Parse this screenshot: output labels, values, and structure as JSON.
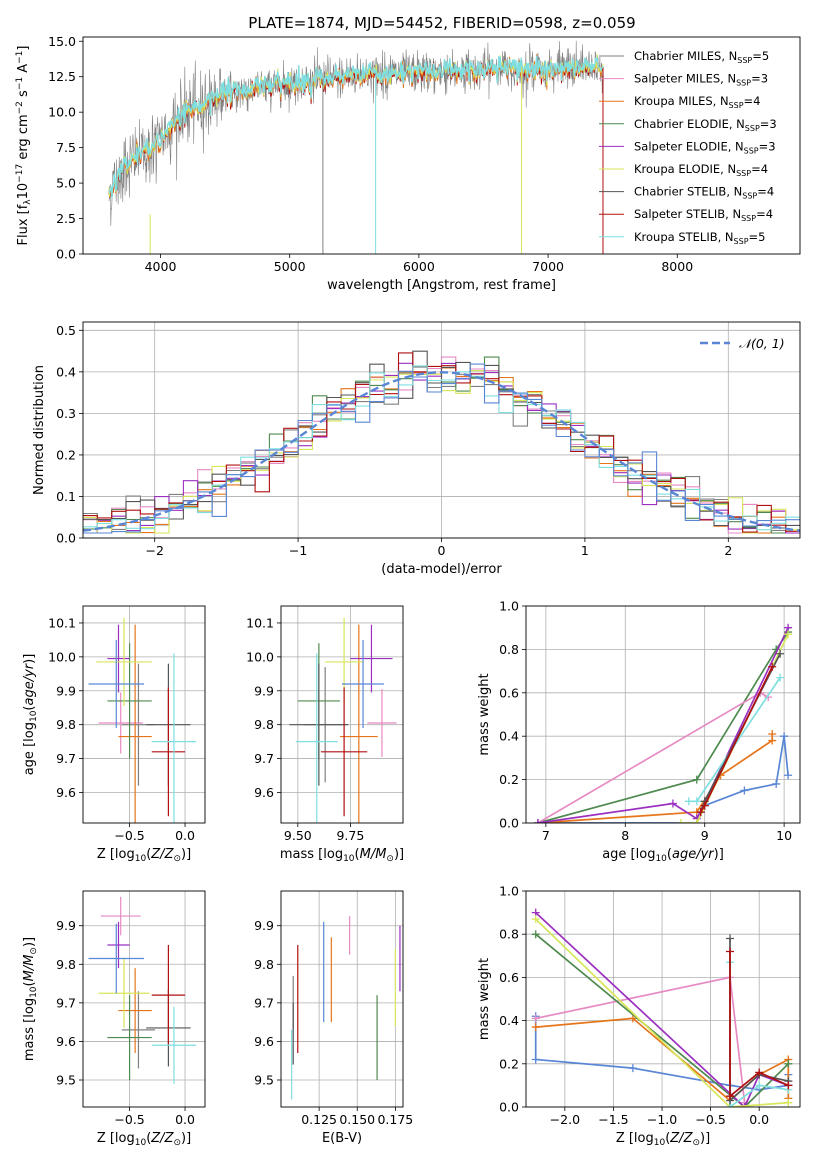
{
  "title": "PLATE=1874, MJD=54452, FIBERID=0598, z=0.059",
  "colors": {
    "chabrier_miles": "#808080",
    "salpeter_miles": "#e78ac3",
    "kroupa_miles": "#e6751a",
    "chabrier_elodie": "#4e8a4e",
    "salpeter_elodie": "#9b30c0",
    "kroupa_elodie": "#d8e65a",
    "chabrier_stelib": "#555555",
    "salpeter_stelib": "#b01010",
    "kroupa_stelib": "#7fdfe0",
    "blue": "#5a86d6",
    "grid": "#b0b0b0"
  },
  "chart_data": [
    {
      "id": "spectrum",
      "type": "line",
      "xlabel": "wavelength [Angstrom, rest frame]",
      "ylabel": "Flux [f_λ10^-17 erg cm^-2 s^-1 A^-1]",
      "xlim": [
        3400,
        8950
      ],
      "ylim": [
        0,
        15.3
      ],
      "xticks": [
        "4000",
        "5000",
        "6000",
        "7000",
        "8000"
      ],
      "yticks": [
        "0.0",
        "2.5",
        "5.0",
        "7.5",
        "10.0",
        "12.5",
        "15.0"
      ],
      "legend_position": "right",
      "legend": [
        {
          "base": "Chabrier MILES, N",
          "sub": "SSP",
          "tail": "=5",
          "color_key": "chabrier_miles"
        },
        {
          "base": "Salpeter MILES, N",
          "sub": "SSP",
          "tail": "=3",
          "color_key": "salpeter_miles"
        },
        {
          "base": "Kroupa MILES, N",
          "sub": "SSP",
          "tail": "=4",
          "color_key": "kroupa_miles"
        },
        {
          "base": "Chabrier ELODIE, N",
          "sub": "SSP",
          "tail": "=3",
          "color_key": "chabrier_elodie"
        },
        {
          "base": "Salpeter ELODIE, N",
          "sub": "SSP",
          "tail": "=3",
          "color_key": "salpeter_elodie"
        },
        {
          "base": "Kroupa ELODIE, N",
          "sub": "SSP",
          "tail": "=4",
          "color_key": "kroupa_elodie"
        },
        {
          "base": "Chabrier STELIB, N",
          "sub": "SSP",
          "tail": "=4",
          "color_key": "chabrier_stelib"
        },
        {
          "base": "Salpeter STELIB, N",
          "sub": "SSP",
          "tail": "=4",
          "color_key": "salpeter_stelib"
        },
        {
          "base": "Kroupa STELIB, N",
          "sub": "SSP",
          "tail": "=5",
          "color_key": "kroupa_stelib"
        }
      ],
      "continuum_x": [
        3600,
        3700,
        3800,
        3900,
        4000,
        4100,
        4200,
        4300,
        4400,
        4600,
        4800,
        5000,
        5200,
        5400,
        5600,
        5800,
        6000,
        6200,
        6400,
        6600,
        6800,
        7000,
        7200,
        7400
      ],
      "continuum_y": [
        4.2,
        6.0,
        6.8,
        7.2,
        8.0,
        9.2,
        10.0,
        10.4,
        11.0,
        11.4,
        11.8,
        12.0,
        12.3,
        12.5,
        12.7,
        12.7,
        12.8,
        12.8,
        12.9,
        13.1,
        13.0,
        13.0,
        13.1,
        13.1
      ],
      "spectrum_range": [
        3600,
        7430
      ],
      "data_spikes": [
        {
          "x": 5257,
          "y": 0
        },
        {
          "x": 5665,
          "y": 0
        },
        {
          "x": 6795,
          "y": 0
        },
        {
          "x": 7425,
          "y": 0
        }
      ]
    },
    {
      "id": "residuals",
      "type": "step",
      "xlabel": "(data-model)/error",
      "ylabel": "Normed distribution",
      "xlim": [
        -2.5,
        2.5
      ],
      "ylim": [
        0,
        0.52
      ],
      "xticks": [
        "−2",
        "−1",
        "0",
        "1",
        "2"
      ],
      "yticks": [
        "0.0",
        "0.1",
        "0.2",
        "0.3",
        "0.4",
        "0.5"
      ],
      "legend": [
        {
          "label": "𝒩(0, 1)",
          "color_key": "blue",
          "style": "dashed"
        }
      ],
      "bin_width": 0.1,
      "gaussian": {
        "mean": 0,
        "sigma": 1
      }
    },
    {
      "id": "age_vs_Z",
      "type": "errorbar",
      "xlabel": "Z [log10(Z/Z⊙)]",
      "ylabel": "age [log10(age/yr)]",
      "xlim": [
        -0.92,
        0.18
      ],
      "ylim": [
        9.51,
        10.15
      ],
      "xticks": [
        "−0.5",
        "0.0"
      ],
      "yticks": [
        "9.6",
        "9.7",
        "9.8",
        "9.9",
        "10.0",
        "10.1"
      ],
      "points": [
        {
          "x": -0.42,
          "xerr": 0.15,
          "y": 9.8,
          "yerr": 0.18,
          "color_key": "chabrier_miles"
        },
        {
          "x": -0.58,
          "xerr": 0.2,
          "y": 9.805,
          "yerr": 0.09,
          "color_key": "salpeter_miles"
        },
        {
          "x": -0.45,
          "xerr": 0.15,
          "y": 9.765,
          "yerr": 0.33,
          "color_key": "kroupa_miles"
        },
        {
          "x": -0.5,
          "xerr": 0.2,
          "y": 9.87,
          "yerr": 0.17,
          "color_key": "chabrier_elodie"
        },
        {
          "x": -0.6,
          "xerr": 0.1,
          "y": 9.995,
          "yerr": 0.1,
          "color_key": "salpeter_elodie"
        },
        {
          "x": -0.55,
          "xerr": 0.25,
          "y": 9.985,
          "yerr": 0.13,
          "color_key": "kroupa_elodie"
        },
        {
          "x": -0.15,
          "xerr": 0.2,
          "y": 9.8,
          "yerr": 0.18,
          "color_key": "chabrier_stelib"
        },
        {
          "x": -0.15,
          "xerr": 0.15,
          "y": 9.72,
          "yerr": 0.19,
          "color_key": "salpeter_stelib"
        },
        {
          "x": -0.1,
          "xerr": 0.2,
          "y": 9.75,
          "yerr": 0.26,
          "color_key": "kroupa_stelib"
        },
        {
          "x": -0.62,
          "xerr": 0.25,
          "y": 9.92,
          "yerr": 0.13,
          "color_key": "blue"
        }
      ]
    },
    {
      "id": "age_vs_mass",
      "type": "errorbar",
      "xlabel": "mass [log10(M/M⊙)]",
      "ylabel": "",
      "xlim": [
        9.42,
        10.0
      ],
      "ylim": [
        9.51,
        10.15
      ],
      "xticks": [
        "9.50",
        "9.75"
      ],
      "yticks": [
        "9.6",
        "9.7",
        "9.8",
        "9.9",
        "10.0",
        "10.1"
      ],
      "points": [
        {
          "x": 9.63,
          "xerr": 0.1,
          "y": 9.8,
          "yerr": 0.17,
          "color_key": "chabrier_miles"
        },
        {
          "x": 9.9,
          "xerr": 0.07,
          "y": 9.805,
          "yerr": 0.1,
          "color_key": "salpeter_miles"
        },
        {
          "x": 9.79,
          "xerr": 0.09,
          "y": 9.765,
          "yerr": 0.33,
          "color_key": "kroupa_miles"
        },
        {
          "x": 9.6,
          "xerr": 0.1,
          "y": 9.87,
          "yerr": 0.17,
          "color_key": "chabrier_elodie"
        },
        {
          "x": 9.85,
          "xerr": 0.1,
          "y": 9.995,
          "yerr": 0.1,
          "color_key": "salpeter_elodie"
        },
        {
          "x": 9.72,
          "xerr": 0.09,
          "y": 9.985,
          "yerr": 0.13,
          "color_key": "kroupa_elodie"
        },
        {
          "x": 9.6,
          "xerr": 0.14,
          "y": 9.8,
          "yerr": 0.18,
          "color_key": "chabrier_stelib"
        },
        {
          "x": 9.72,
          "xerr": 0.11,
          "y": 9.72,
          "yerr": 0.19,
          "color_key": "salpeter_stelib"
        },
        {
          "x": 9.59,
          "xerr": 0.1,
          "y": 9.75,
          "yerr": 0.26,
          "color_key": "kroupa_stelib"
        },
        {
          "x": 9.81,
          "xerr": 0.1,
          "y": 9.92,
          "yerr": 0.13,
          "color_key": "blue"
        }
      ]
    },
    {
      "id": "massweight_vs_age",
      "type": "line",
      "xlabel": "age [log10(age/yr)]",
      "ylabel": "mass weight",
      "xlim": [
        6.75,
        10.2
      ],
      "ylim": [
        0,
        1.0
      ],
      "xticks": [
        "7",
        "8",
        "9",
        "10"
      ],
      "yticks": [
        "0.0",
        "0.2",
        "0.4",
        "0.6",
        "0.8",
        "1.0"
      ],
      "series": [
        {
          "color_key": "blue",
          "x": [
            6.9,
            8.9,
            9.0,
            9.5,
            9.9,
            10.0,
            10.05
          ],
          "y": [
            0.0,
            0.0,
            0.08,
            0.15,
            0.18,
            0.4,
            0.22
          ]
        },
        {
          "color_key": "kroupa_miles",
          "x": [
            6.9,
            8.9,
            9.2,
            9.85,
            9.85
          ],
          "y": [
            0.0,
            0.05,
            0.22,
            0.38,
            0.41
          ]
        },
        {
          "color_key": "chabrier_elodie",
          "x": [
            6.9,
            8.9,
            9.9,
            10.05
          ],
          "y": [
            0.0,
            0.2,
            0.8,
            0.88
          ]
        },
        {
          "color_key": "salpeter_miles",
          "x": [
            6.9,
            9.7,
            9.8
          ],
          "y": [
            0.0,
            0.6,
            0.58
          ]
        },
        {
          "color_key": "salpeter_elodie",
          "x": [
            6.9,
            8.6,
            8.9,
            10.05
          ],
          "y": [
            0.0,
            0.09,
            0.02,
            0.9
          ]
        },
        {
          "color_key": "kroupa_elodie",
          "x": [
            8.7,
            8.9,
            10.05
          ],
          "y": [
            0.0,
            0.0,
            0.87
          ]
        },
        {
          "color_key": "kroupa_stelib",
          "x": [
            8.8,
            8.9,
            9.95
          ],
          "y": [
            0.1,
            0.1,
            0.67
          ]
        },
        {
          "color_key": "chabrier_stelib",
          "x": [
            8.95,
            9.0,
            9.95
          ],
          "y": [
            0.05,
            0.1,
            0.78
          ]
        },
        {
          "color_key": "salpeter_stelib",
          "x": [
            8.95,
            9.0,
            9.85
          ],
          "y": [
            0.05,
            0.08,
            0.72
          ]
        }
      ]
    },
    {
      "id": "mass_vs_Z",
      "type": "errorbar",
      "xlabel": "Z [log10(Z/Z⊙)]",
      "ylabel": "mass [log10(M/M⊙)]",
      "xlim": [
        -0.92,
        0.18
      ],
      "ylim": [
        9.43,
        9.99
      ],
      "xticks": [
        "−0.5",
        "0.0"
      ],
      "yticks": [
        "9.5",
        "9.6",
        "9.7",
        "9.8",
        "9.9"
      ],
      "points": [
        {
          "x": -0.42,
          "xerr": 0.15,
          "y": 9.63,
          "yerr": 0.1,
          "color_key": "chabrier_miles"
        },
        {
          "x": -0.58,
          "xerr": 0.18,
          "y": 9.925,
          "yerr": 0.05,
          "color_key": "salpeter_miles"
        },
        {
          "x": -0.45,
          "xerr": 0.15,
          "y": 9.68,
          "yerr": 0.11,
          "color_key": "kroupa_miles"
        },
        {
          "x": -0.5,
          "xerr": 0.2,
          "y": 9.61,
          "yerr": 0.11,
          "color_key": "chabrier_elodie"
        },
        {
          "x": -0.6,
          "xerr": 0.1,
          "y": 9.85,
          "yerr": 0.06,
          "color_key": "salpeter_elodie"
        },
        {
          "x": -0.55,
          "xerr": 0.23,
          "y": 9.725,
          "yerr": 0.09,
          "color_key": "kroupa_elodie"
        },
        {
          "x": -0.15,
          "xerr": 0.2,
          "y": 9.635,
          "yerr": 0.1,
          "color_key": "chabrier_stelib"
        },
        {
          "x": -0.15,
          "xerr": 0.15,
          "y": 9.72,
          "yerr": 0.13,
          "color_key": "salpeter_stelib"
        },
        {
          "x": -0.1,
          "xerr": 0.2,
          "y": 9.59,
          "yerr": 0.1,
          "color_key": "kroupa_stelib"
        },
        {
          "x": -0.62,
          "xerr": 0.25,
          "y": 9.815,
          "yerr": 0.09,
          "color_key": "blue"
        }
      ]
    },
    {
      "id": "mass_vs_ebv",
      "type": "errorbar",
      "xlabel": "E(B-V)",
      "ylabel": "",
      "xlim": [
        0.1,
        0.18
      ],
      "ylim": [
        9.43,
        9.99
      ],
      "xticks": [
        "0.125",
        "0.150",
        "0.175"
      ],
      "yticks": [
        "9.5",
        "9.6",
        "9.7",
        "9.8",
        "9.9"
      ],
      "points": [
        {
          "x": 0.108,
          "yerr": 0.07,
          "y": 9.7,
          "color_key": "chabrier_miles"
        },
        {
          "x": 0.145,
          "yerr": 0.05,
          "y": 9.875,
          "color_key": "salpeter_miles"
        },
        {
          "x": 0.133,
          "yerr": 0.11,
          "y": 9.76,
          "color_key": "kroupa_miles"
        },
        {
          "x": 0.163,
          "yerr": 0.11,
          "y": 9.61,
          "color_key": "chabrier_elodie"
        },
        {
          "x": 0.178,
          "yerr": 0.085,
          "y": 9.815,
          "color_key": "salpeter_elodie"
        },
        {
          "x": 0.175,
          "yerr": 0.1,
          "y": 9.74,
          "color_key": "kroupa_elodie"
        },
        {
          "x": 0.108,
          "yerr": 0.08,
          "y": 9.62,
          "color_key": "chabrier_stelib"
        },
        {
          "x": 0.111,
          "yerr": 0.14,
          "y": 9.71,
          "color_key": "salpeter_stelib"
        },
        {
          "x": 0.107,
          "yerr": 0.09,
          "y": 9.54,
          "color_key": "kroupa_stelib"
        },
        {
          "x": 0.128,
          "yerr": 0.13,
          "y": 9.78,
          "color_key": "blue"
        }
      ]
    },
    {
      "id": "massweight_vs_Z",
      "type": "line",
      "xlabel": "Z [log10(Z/Z⊙)]",
      "ylabel": "mass weight",
      "xlim": [
        -2.4,
        0.42
      ],
      "ylim": [
        0,
        1.0
      ],
      "xticks": [
        "−2.0",
        "−1.5",
        "−1.0",
        "−0.5",
        "0.0"
      ],
      "yticks": [
        "0.0",
        "0.2",
        "0.4",
        "0.6",
        "0.8",
        "1.0"
      ],
      "series": [
        {
          "color_key": "blue",
          "x": [
            -2.3,
            -2.3,
            -1.3,
            -0.3,
            0.0,
            0.3,
            0.3
          ],
          "y": [
            0.42,
            0.22,
            0.18,
            0.1,
            0.08,
            0.1,
            0.15
          ]
        },
        {
          "color_key": "kroupa_miles",
          "x": [
            -2.3,
            -1.3,
            -0.3,
            0.0,
            0.3,
            0.3
          ],
          "y": [
            0.37,
            0.41,
            0.03,
            0.15,
            0.22,
            0.04
          ]
        },
        {
          "color_key": "salpeter_miles",
          "x": [
            -2.3,
            -0.3,
            -0.15
          ],
          "y": [
            0.41,
            0.6,
            0.02
          ]
        },
        {
          "color_key": "chabrier_elodie",
          "x": [
            -2.3,
            -0.15,
            0.3
          ],
          "y": [
            0.8,
            0.0,
            0.2
          ]
        },
        {
          "color_key": "salpeter_elodie",
          "x": [
            -2.3,
            -0.15,
            0.0,
            0.3
          ],
          "y": [
            0.9,
            0.0,
            0.15,
            0.1
          ]
        },
        {
          "color_key": "kroupa_elodie",
          "x": [
            -2.3,
            -0.3,
            0.3
          ],
          "y": [
            0.87,
            0.0,
            0.02
          ]
        },
        {
          "color_key": "kroupa_stelib",
          "x": [
            -0.3,
            -0.3,
            0.0,
            0.3
          ],
          "y": [
            0.67,
            0.0,
            0.1,
            0.08
          ]
        },
        {
          "color_key": "chabrier_stelib",
          "x": [
            -0.3,
            -0.3,
            0.0,
            0.3
          ],
          "y": [
            0.78,
            0.03,
            0.15,
            0.12
          ]
        },
        {
          "color_key": "salpeter_stelib",
          "x": [
            -0.3,
            -0.3,
            0.0,
            0.3
          ],
          "y": [
            0.72,
            0.05,
            0.16,
            0.1
          ]
        }
      ]
    }
  ]
}
